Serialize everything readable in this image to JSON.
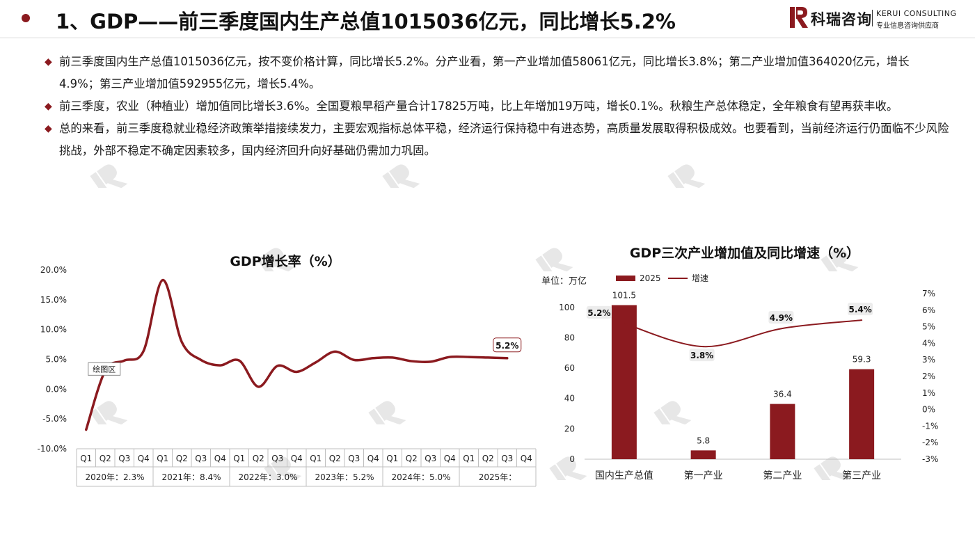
{
  "header": {
    "title": "1、GDP——前三季度国内生产总值1015036亿元，同比增长5.2%",
    "logo_cn": "科瑞咨询",
    "logo_en": "KERUI CONSULTING",
    "logo_tag": "专业信息咨询供应商"
  },
  "bullets": [
    "前三季度国内生产总值1015036亿元，按不变价格计算，同比增长5.2%。分产业看，第一产业增加值58061亿元，同比增长3.8%；第二产业增加值364020亿元，增长4.9%；第三产业增加值592955亿元，增长5.4%。",
    "前三季度，农业（种植业）增加值同比增长3.6%。全国夏粮早稻产量合计17825万吨，比上年增加19万吨，增长0.1%。秋粮生产总体稳定，全年粮食有望再获丰收。",
    "总的来看，前三季度稳就业稳经济政策举措接续发力，主要宏观指标总体平稳，经济运行保持稳中有进态势，高质量发展取得积极成效。也要看到，当前经济运行仍面临不少风险挑战，外部不稳定不确定因素较多，国内经济回升向好基础仍需加力巩固。"
  ],
  "colors": {
    "accent": "#8b1a1f",
    "bar": "#8b1a1f",
    "line": "#8b1a1f"
  },
  "chart_data": [
    {
      "type": "line",
      "title": "GDP增长率（%）",
      "quarters": [
        "Q1",
        "Q2",
        "Q3",
        "Q4",
        "Q1",
        "Q2",
        "Q3",
        "Q4",
        "Q1",
        "Q2",
        "Q3",
        "Q4",
        "Q1",
        "Q2",
        "Q3",
        "Q4",
        "Q1",
        "Q2",
        "Q3",
        "Q4",
        "Q1",
        "Q2",
        "Q3",
        "Q4"
      ],
      "year_groups": [
        "2020年：2.3%",
        "2021年：8.4%",
        "2022年：3.0%",
        "2023年：5.2%",
        "2024年：5.0%",
        "2025年："
      ],
      "values": [
        -6.8,
        3.1,
        4.8,
        6.4,
        18.3,
        7.9,
        4.9,
        4.0,
        4.8,
        0.4,
        3.9,
        2.9,
        4.5,
        6.3,
        4.9,
        5.2,
        5.3,
        4.7,
        4.6,
        5.4,
        5.4,
        5.3,
        5.2,
        null
      ],
      "ylim": [
        -10,
        20
      ],
      "yticks": [
        "20.0%",
        "15.0%",
        "10.0%",
        "5.0%",
        "0.0%",
        "-5.0%",
        "-10.0%"
      ],
      "last_label": "5.2%",
      "tooltip": "绘图区"
    },
    {
      "type": "bar+line",
      "title": "GDP三次产业增加值及同比增速（%）",
      "unit_label": "单位：万亿",
      "categories": [
        "国内生产总值",
        "第一产业",
        "第二产业",
        "第三产业"
      ],
      "series": [
        {
          "name": "2025",
          "type": "bar",
          "values": [
            101.5,
            5.8,
            36.4,
            59.3
          ],
          "labels": [
            "101.5",
            "5.8",
            "36.4",
            "59.3"
          ]
        },
        {
          "name": "增速",
          "type": "line",
          "values": [
            5.2,
            3.8,
            4.9,
            5.4
          ],
          "labels": [
            "5.2%",
            "3.8%",
            "4.9%",
            "5.4%"
          ]
        }
      ],
      "ylim_left": [
        0,
        110
      ],
      "yticks_left": [
        "100",
        "80",
        "60",
        "40",
        "20",
        "0"
      ],
      "ylim_right": [
        -3,
        7
      ],
      "yticks_right": [
        "7%",
        "6%",
        "5%",
        "4%",
        "3%",
        "2%",
        "1%",
        "0%",
        "-1%",
        "-2%",
        "-3%"
      ]
    }
  ]
}
